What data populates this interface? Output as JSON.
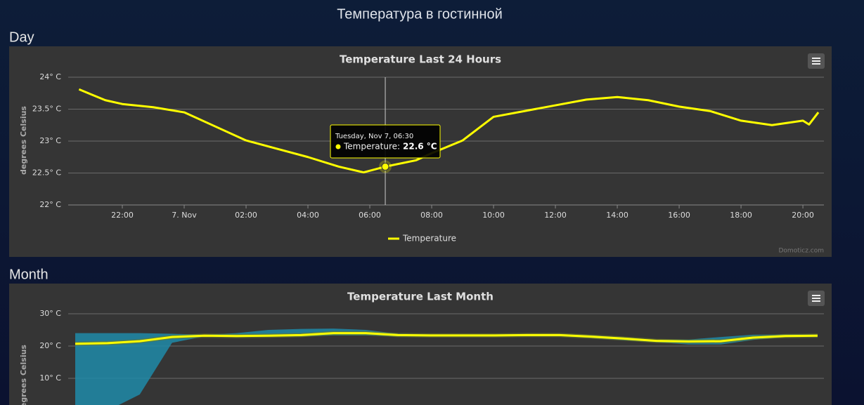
{
  "header": {
    "title": "Температура в гостинной"
  },
  "sections": [
    "Day",
    "Month"
  ],
  "chart_data": [
    {
      "type": "line",
      "title": "Temperature Last 24 Hours",
      "y_label": "degrees Celsius",
      "credit": "Domoticz.com",
      "x": [
        20.6,
        21.45,
        22,
        23,
        24,
        25,
        26,
        27,
        28,
        29,
        29.8,
        30.5,
        31.5,
        32,
        33,
        34,
        35,
        36,
        37,
        38,
        39,
        40,
        41,
        42,
        43,
        44,
        44.2,
        44.5
      ],
      "series": [
        {
          "name": "Temperature",
          "color": "#ffff00",
          "values": [
            23.81,
            23.64,
            23.58,
            23.53,
            23.45,
            23.23,
            23.01,
            22.88,
            22.75,
            22.6,
            22.51,
            22.6,
            22.7,
            22.81,
            23.01,
            23.38,
            23.47,
            23.56,
            23.65,
            23.69,
            23.64,
            23.54,
            23.47,
            23.32,
            23.25,
            23.32,
            23.26,
            23.45
          ]
        }
      ],
      "xlim": [
        20.25,
        44.68
      ],
      "xticks": [
        {
          "value": 22,
          "label": "22:00"
        },
        {
          "value": 24,
          "label": "7. Nov"
        },
        {
          "value": 26,
          "label": "02:00"
        },
        {
          "value": 28,
          "label": "04:00"
        },
        {
          "value": 30,
          "label": "06:00"
        },
        {
          "value": 32,
          "label": "08:00"
        },
        {
          "value": 34,
          "label": "10:00"
        },
        {
          "value": 36,
          "label": "12:00"
        },
        {
          "value": 38,
          "label": "14:00"
        },
        {
          "value": 40,
          "label": "16:00"
        },
        {
          "value": 42,
          "label": "18:00"
        },
        {
          "value": 44,
          "label": "20:00"
        }
      ],
      "ylim": [
        22,
        24
      ],
      "yticks": [
        {
          "value": 22,
          "label": "22° C"
        },
        {
          "value": 22.5,
          "label": "22.5° C"
        },
        {
          "value": 23,
          "label": "23° C"
        },
        {
          "value": 23.5,
          "label": "23.5° C"
        },
        {
          "value": 24,
          "label": "24° C"
        }
      ],
      "grid": true,
      "tooltip": {
        "title": "Tuesday, Nov 7, 06:30",
        "label": "Temperature:",
        "value": "22.6 °C"
      }
    },
    {
      "type": "arearange_line",
      "title": "Temperature Last Month",
      "y_label": "degrees Celsius",
      "categories": [
        null,
        null,
        null,
        null,
        null,
        null,
        null,
        null,
        null,
        null,
        null,
        null,
        null,
        null,
        null,
        null,
        null,
        null,
        null,
        null,
        null,
        null,
        null,
        null
      ],
      "series": [
        {
          "color": "#ffff00",
          "values": [
            20.7,
            20.9,
            21.5,
            22.8,
            23.2,
            23.1,
            23.2,
            23.4,
            24.0,
            24.0,
            23.4,
            23.3,
            23.3,
            23.3,
            23.4,
            23.4,
            22.9,
            22.3,
            21.6,
            21.4,
            21.5,
            22.6,
            23.1,
            23.2
          ]
        }
      ],
      "range": {
        "color": "#1f8aa8",
        "low": [
          0,
          0,
          5,
          21,
          23,
          22.8,
          22.9,
          23,
          23.3,
          23.3,
          23,
          23,
          23,
          23,
          23.1,
          23.1,
          22.5,
          21.8,
          21.2,
          20.5,
          20.5,
          21.9,
          22.8,
          22.9
        ],
        "high": [
          24,
          24,
          24,
          23.8,
          23.5,
          24,
          25,
          25.3,
          25.4,
          25.0,
          23.8,
          23.6,
          23.6,
          23.6,
          23.7,
          23.7,
          23.3,
          22.7,
          21.9,
          22.0,
          22.8,
          23.5,
          23.6,
          23.6
        ]
      },
      "ylim": [
        0,
        30
      ],
      "yticks": [
        {
          "value": 10,
          "label": "10° C"
        },
        {
          "value": 20,
          "label": "20° C"
        },
        {
          "value": 30,
          "label": "30° C"
        }
      ],
      "grid": true
    }
  ]
}
